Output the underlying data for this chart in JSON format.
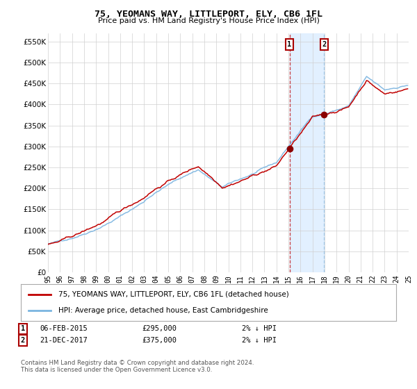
{
  "title": "75, YEOMANS WAY, LITTLEPORT, ELY, CB6 1FL",
  "subtitle": "Price paid vs. HM Land Registry's House Price Index (HPI)",
  "ylim": [
    0,
    570000
  ],
  "yticks": [
    0,
    50000,
    100000,
    150000,
    200000,
    250000,
    300000,
    350000,
    400000,
    450000,
    500000,
    550000
  ],
  "hpi_color": "#7ab4e0",
  "price_color": "#c00000",
  "marker_color": "#8b0000",
  "vline1_color": "#c00000",
  "vline2_color": "#7ab4e0",
  "shade_color": "#ddeeff",
  "sale1_year": 2015.09,
  "sale1_price": 295000,
  "sale2_year": 2017.97,
  "sale2_price": 375000,
  "legend1": "75, YEOMANS WAY, LITTLEPORT, ELY, CB6 1FL (detached house)",
  "legend2": "HPI: Average price, detached house, East Cambridgeshire",
  "footnote": "Contains HM Land Registry data © Crown copyright and database right 2024.\nThis data is licensed under the Open Government Licence v3.0.",
  "start_year": 1995,
  "end_year": 2025
}
